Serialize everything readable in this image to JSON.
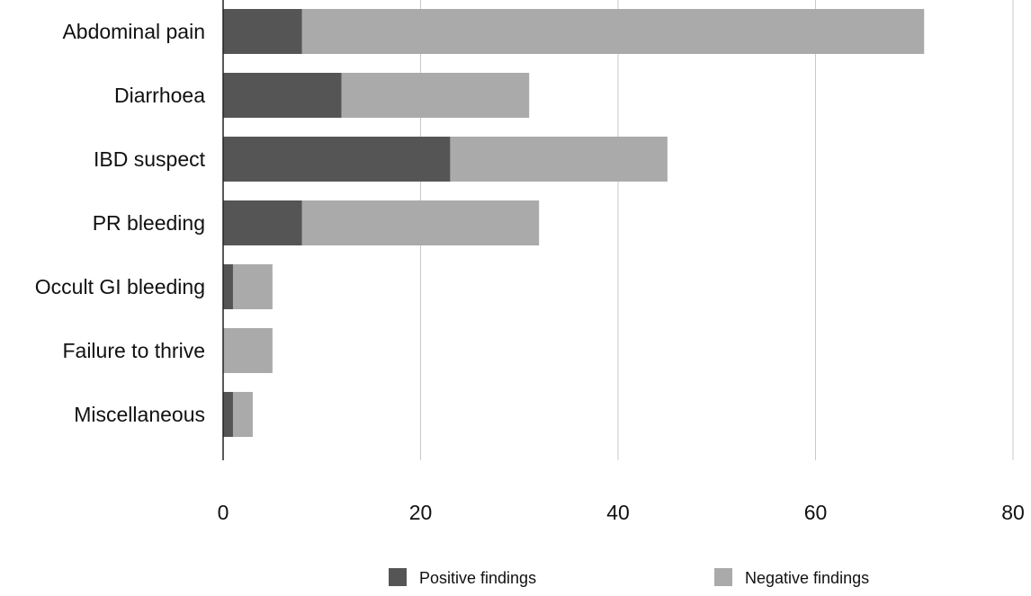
{
  "chart_data": {
    "type": "bar",
    "orientation": "horizontal",
    "stacked": true,
    "categories": [
      "Abdominal pain",
      "Diarrhoea",
      "IBD suspect",
      "PR bleeding",
      "Occult GI  bleeding",
      "Failure to thrive",
      "Miscellaneous"
    ],
    "series": [
      {
        "name": "Positive findings",
        "color": "#555555",
        "values": [
          8,
          12,
          23,
          8,
          1,
          0,
          1
        ]
      },
      {
        "name": "Negative findings",
        "color": "#aaaaaa",
        "values": [
          63,
          19,
          22,
          24,
          4,
          5,
          2
        ]
      }
    ],
    "x_ticks": [
      "0",
      "20",
      "40",
      "60",
      "80"
    ],
    "xlim": [
      0,
      80
    ],
    "grid": "vertical",
    "legend_position": "bottom"
  }
}
